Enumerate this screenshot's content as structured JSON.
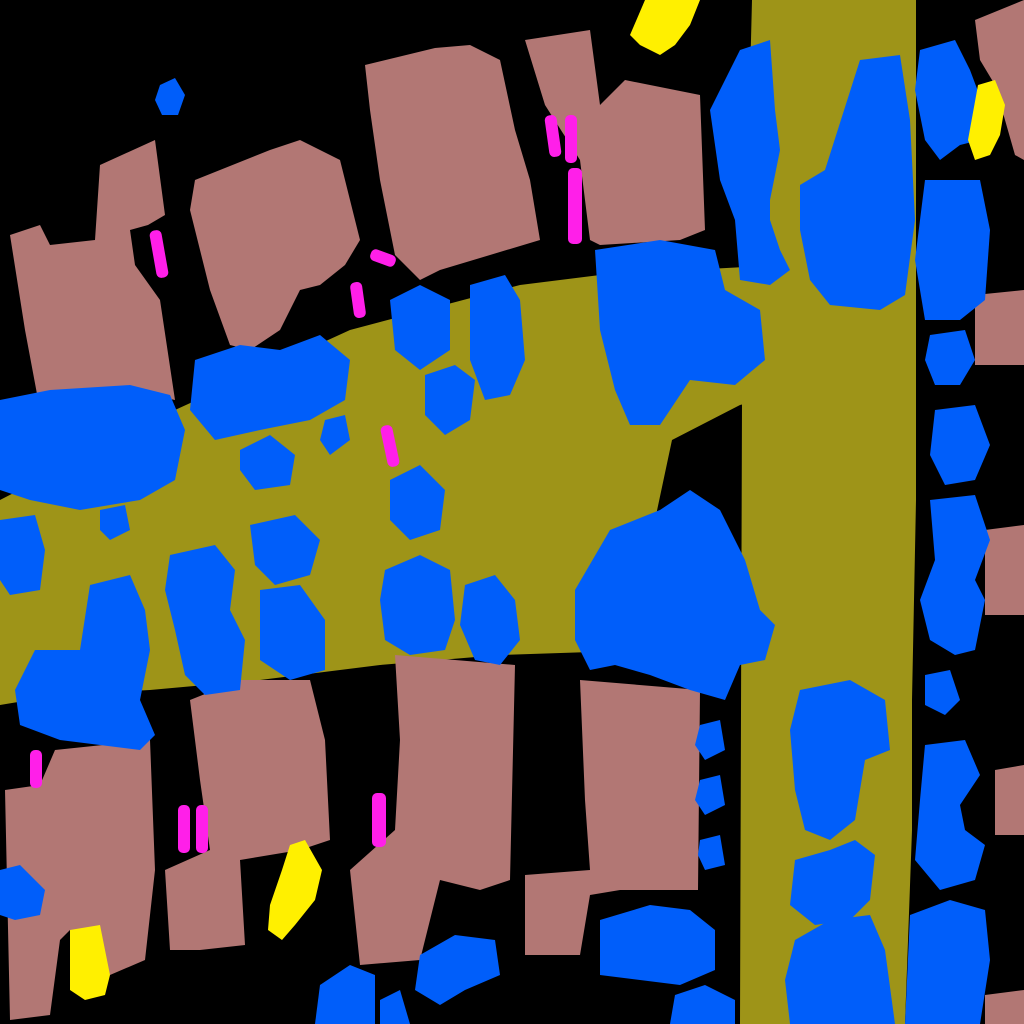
{
  "map": {
    "type": "semantic-segmentation-aerial",
    "classes": [
      {
        "id": "background",
        "color": "#000000"
      },
      {
        "id": "road",
        "color": "#9E9418"
      },
      {
        "id": "building",
        "color": "#B27774"
      },
      {
        "id": "tree",
        "color": "#005EFA"
      },
      {
        "id": "car",
        "color": "#FF1FE9"
      },
      {
        "id": "clutter",
        "color": "#FFF000"
      }
    ]
  }
}
